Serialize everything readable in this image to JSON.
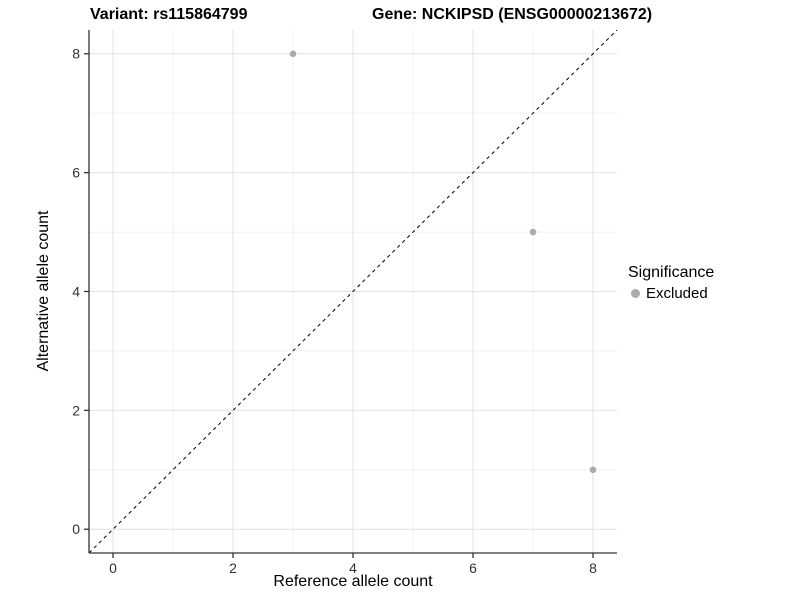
{
  "titles": {
    "variant": "Variant: rs115864799",
    "gene": "Gene: NCKIPSD (ENSG00000213672)"
  },
  "colors": {
    "background": "#ffffff",
    "axis": "#333333",
    "tick_text": "#333333",
    "grid_major": "#e2e2e2",
    "grid_minor": "#f0f0f0",
    "point_excluded": "#ababab",
    "reference_line": "#000000",
    "text": "#000000"
  },
  "chart_data": {
    "type": "scatter",
    "titles": {
      "left": "Variant: rs115864799",
      "right": "Gene: NCKIPSD (ENSG00000213672)"
    },
    "xlabel": "Reference allele count",
    "ylabel": "Alternative allele count",
    "xlim": [
      -0.4,
      8.4
    ],
    "ylim": [
      -0.4,
      8.4
    ],
    "x_ticks": [
      0,
      2,
      4,
      6,
      8
    ],
    "y_ticks": [
      0,
      2,
      4,
      6,
      8
    ],
    "x_minor_ticks": [
      1,
      3,
      5,
      7
    ],
    "y_minor_ticks": [
      1,
      3,
      5,
      7
    ],
    "grid": true,
    "series": [
      {
        "name": "Excluded",
        "color": "#ababab",
        "points": [
          {
            "x": 3,
            "y": 8
          },
          {
            "x": 7,
            "y": 5
          },
          {
            "x": 8,
            "y": 1
          }
        ]
      }
    ],
    "reference_line": {
      "type": "identity y=x",
      "style": "dashed",
      "color": "#000000"
    },
    "legend": {
      "title": "Significance",
      "position": "right",
      "entries": [
        "Excluded"
      ]
    }
  }
}
